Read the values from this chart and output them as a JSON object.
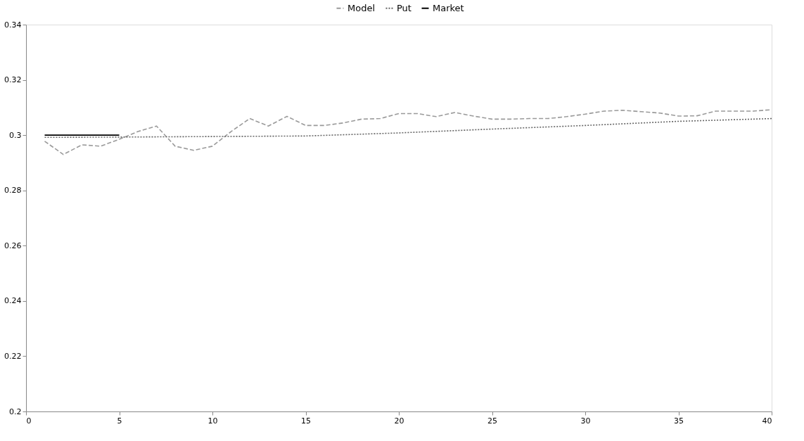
{
  "chart_data": {
    "type": "line",
    "xlim": [
      0,
      40
    ],
    "xticks": [
      0,
      5,
      10,
      15,
      20,
      25,
      30,
      35,
      40
    ],
    "ylim": [
      0.2,
      0.34
    ],
    "yticks": [
      0.2,
      0.22,
      0.24,
      0.26,
      0.28,
      0.3,
      0.32,
      0.34
    ],
    "grid": false,
    "legend": "top",
    "series": [
      {
        "name": "Model",
        "color": "#9a9a9a",
        "line_style": "dashed",
        "x": [
          1,
          2,
          3,
          4,
          5,
          6,
          7,
          8,
          9,
          10,
          11,
          12,
          13,
          14,
          15,
          16,
          17,
          18,
          19,
          20,
          21,
          22,
          23,
          24,
          25,
          26,
          27,
          28,
          29,
          30,
          31,
          32,
          33,
          34,
          35,
          36,
          37,
          38,
          39,
          40
        ],
        "values": [
          0.2978,
          0.293,
          0.2965,
          0.296,
          0.2985,
          0.3013,
          0.3033,
          0.296,
          0.2945,
          0.296,
          0.3013,
          0.306,
          0.3033,
          0.3068,
          0.3035,
          0.3035,
          0.3044,
          0.3058,
          0.306,
          0.3078,
          0.3078,
          0.3067,
          0.3082,
          0.3069,
          0.3058,
          0.3058,
          0.306,
          0.306,
          0.3067,
          0.3076,
          0.3087,
          0.309,
          0.3085,
          0.308,
          0.3069,
          0.307,
          0.3087,
          0.3087,
          0.3087,
          0.3092
        ]
      },
      {
        "name": "Put",
        "color": "#666666",
        "line_style": "dotted",
        "x": [
          1,
          5,
          10,
          15,
          20,
          25,
          30,
          35,
          40
        ],
        "values": [
          0.2992,
          0.2993,
          0.2995,
          0.2997,
          0.3008,
          0.3022,
          0.3035,
          0.305,
          0.306
        ]
      },
      {
        "name": "Market",
        "color": "#000000",
        "line_style": "solid",
        "x": [
          1,
          2,
          3,
          4,
          5
        ],
        "values": [
          0.3,
          0.3,
          0.3,
          0.3,
          0.3
        ]
      }
    ]
  }
}
